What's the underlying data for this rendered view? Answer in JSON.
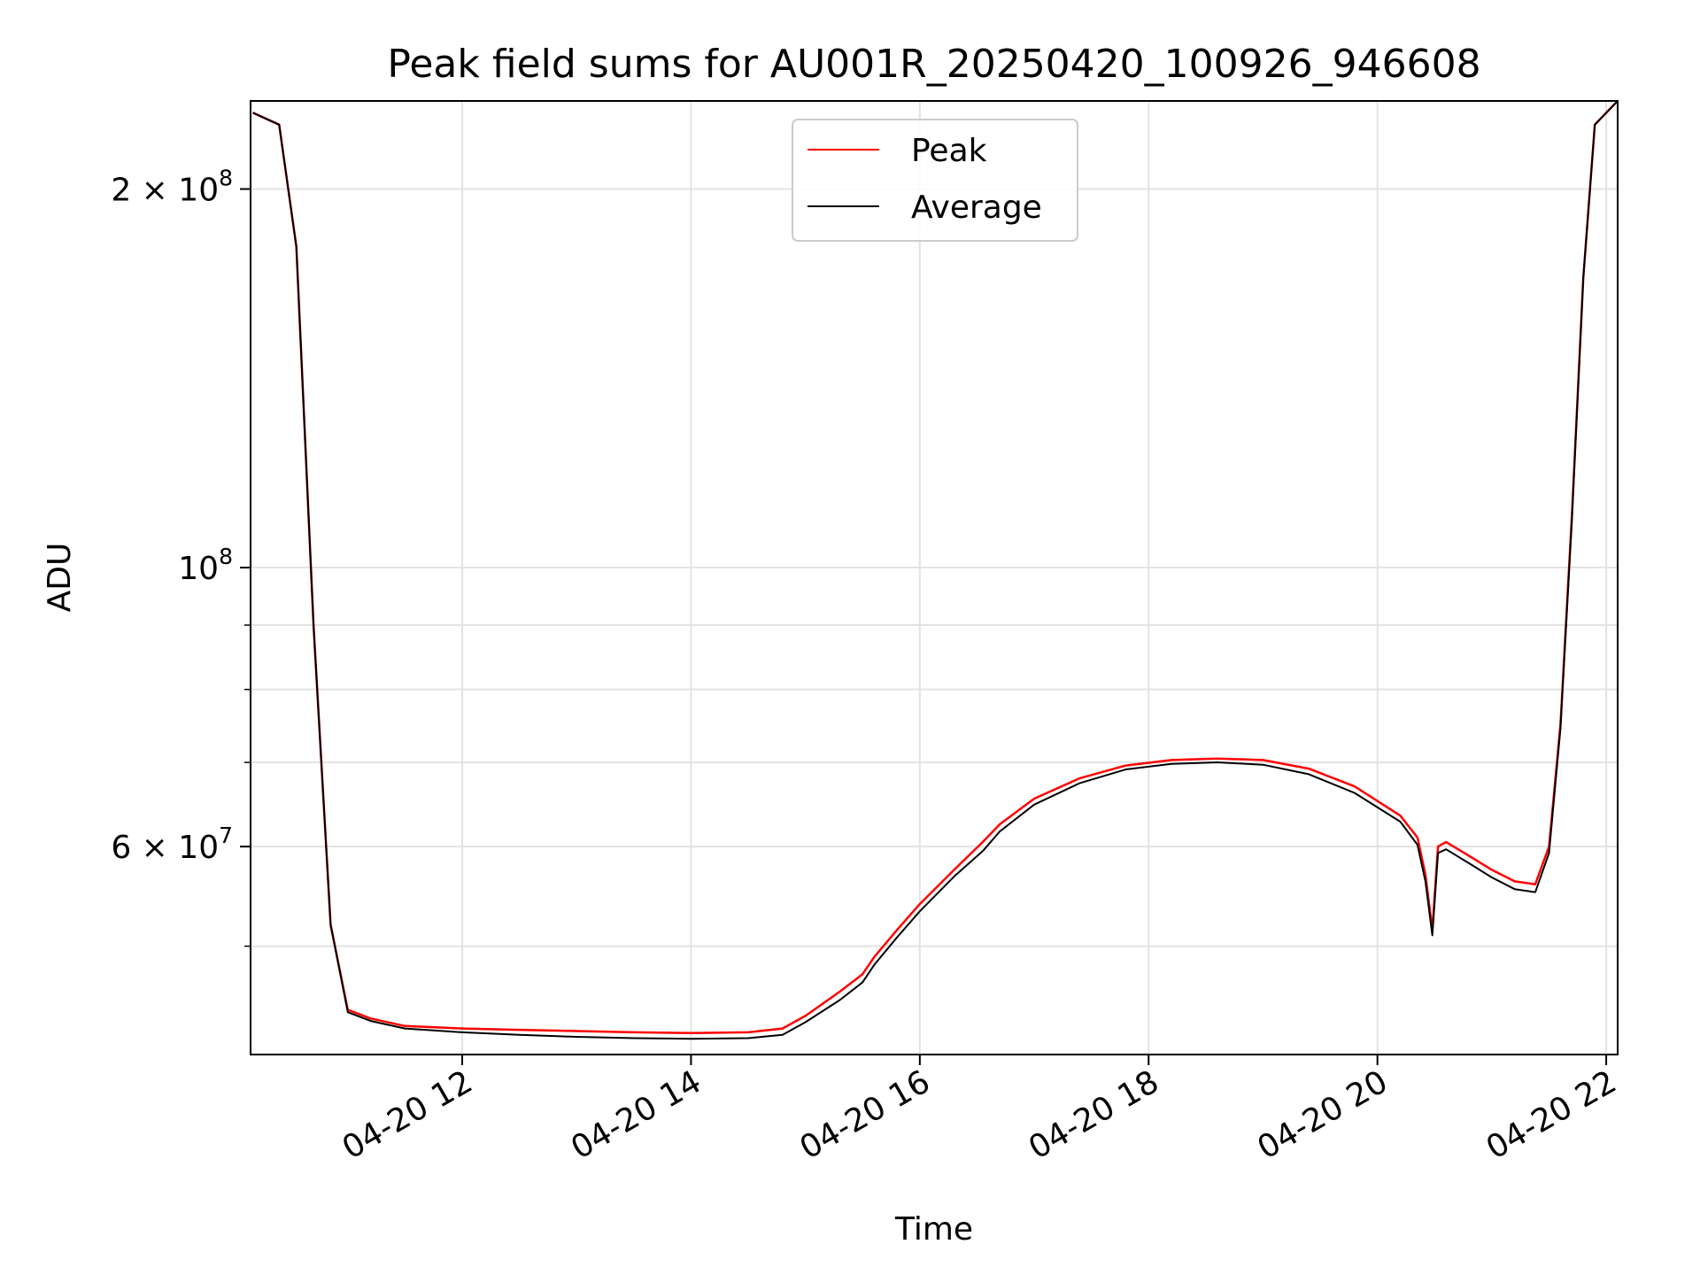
{
  "chart_data": {
    "type": "line",
    "title": "Peak field sums for AU001R_20250420_100926_946608",
    "xlabel": "Time",
    "ylabel": "ADU",
    "x_unit": "hours (2025-04-20)",
    "xlim": [
      10.15,
      22.1
    ],
    "ylim": [
      41000000.0,
      235000000.0
    ],
    "yscale": "log",
    "grid": true,
    "legend_position": "top-center",
    "x_ticks": [
      {
        "value": 12,
        "label": "04-20 12"
      },
      {
        "value": 14,
        "label": "04-20 14"
      },
      {
        "value": 16,
        "label": "04-20 16"
      },
      {
        "value": 18,
        "label": "04-20 18"
      },
      {
        "value": 20,
        "label": "04-20 20"
      },
      {
        "value": 22,
        "label": "04-20 22"
      }
    ],
    "y_major_ticks": [
      {
        "value": 60000000,
        "base": "6 × 10",
        "exp": "7"
      },
      {
        "value": 100000000,
        "base": "10",
        "exp": "8"
      },
      {
        "value": 200000000,
        "base": "2 × 10",
        "exp": "8"
      }
    ],
    "y_minor_ticks": [
      50000000,
      70000000,
      80000000,
      90000000
    ],
    "series": [
      {
        "name": "Peak",
        "color": "#ff0000",
        "x": [
          10.17,
          10.4,
          10.55,
          10.7,
          10.85,
          11.0,
          11.2,
          11.5,
          12.0,
          12.5,
          13.0,
          13.5,
          14.0,
          14.5,
          14.8,
          15.0,
          15.3,
          15.5,
          15.6,
          15.8,
          16.0,
          16.3,
          16.55,
          16.7,
          17.0,
          17.4,
          17.8,
          18.2,
          18.6,
          19.0,
          19.4,
          19.8,
          20.2,
          20.35,
          20.42,
          20.48,
          20.53,
          20.6,
          20.8,
          21.0,
          21.2,
          21.38,
          21.5,
          21.6,
          21.7,
          21.8,
          21.9,
          22.1
        ],
        "y": [
          230000000,
          225000000,
          180000000,
          90000000,
          52000000,
          44500000,
          43800000,
          43200000,
          43000000,
          42900000,
          42800000,
          42700000,
          42650000,
          42700000,
          43000000,
          44000000,
          46000000,
          47500000,
          49000000,
          51500000,
          54000000,
          57500000,
          60500000,
          62500000,
          65500000,
          68000000,
          69600000,
          70300000,
          70500000,
          70300000,
          69200000,
          67000000,
          63500000,
          61000000,
          57000000,
          51500000,
          60000000,
          60500000,
          59000000,
          57500000,
          56300000,
          56000000,
          60000000,
          75000000,
          110000000,
          170000000,
          225000000,
          235000000
        ]
      },
      {
        "name": "Average",
        "color": "#000000",
        "x": [
          10.17,
          10.4,
          10.55,
          10.7,
          10.85,
          11.0,
          11.2,
          11.5,
          12.0,
          12.5,
          13.0,
          13.5,
          14.0,
          14.5,
          14.8,
          15.0,
          15.3,
          15.5,
          15.6,
          15.8,
          16.0,
          16.3,
          16.55,
          16.7,
          17.0,
          17.4,
          17.8,
          18.2,
          18.6,
          19.0,
          19.4,
          19.8,
          20.2,
          20.35,
          20.42,
          20.48,
          20.53,
          20.6,
          20.8,
          21.0,
          21.2,
          21.38,
          21.5,
          21.6,
          21.7,
          21.8,
          21.9,
          22.1
        ],
        "y": [
          230000000,
          225000000,
          180000000,
          90000000,
          52000000,
          44300000,
          43600000,
          43000000,
          42700000,
          42500000,
          42350000,
          42250000,
          42200000,
          42250000,
          42500000,
          43500000,
          45300000,
          46800000,
          48300000,
          50800000,
          53300000,
          56800000,
          59500000,
          61700000,
          64800000,
          67400000,
          69100000,
          69800000,
          70000000,
          69700000,
          68500000,
          66200000,
          62800000,
          60200000,
          56300000,
          51000000,
          59300000,
          59700000,
          58200000,
          56700000,
          55500000,
          55200000,
          59300000,
          74500000,
          109000000,
          170000000,
          225000000,
          235000000
        ]
      }
    ]
  }
}
